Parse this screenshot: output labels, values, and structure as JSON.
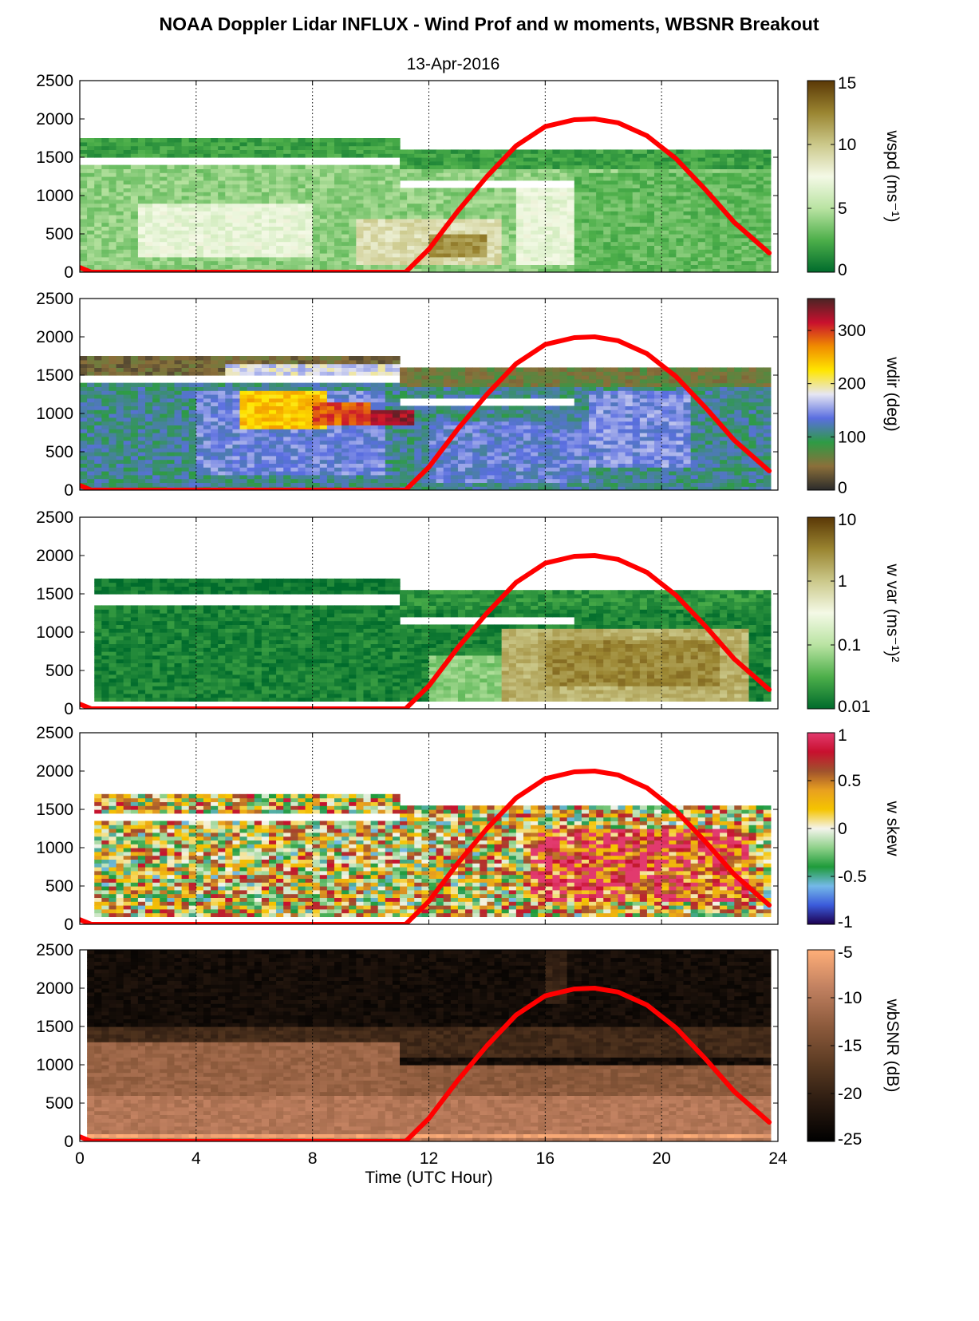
{
  "figure": {
    "title": "NOAA Doppler Lidar INFLUX - Wind Prof and w moments, WBSNR Breakout",
    "subtitle": "13-Apr-2016"
  },
  "chart_data": [
    {
      "type": "heatmap",
      "name": "wspd",
      "colorbar_label": "wspd (ms⁻¹)",
      "colorbar_ticks": [
        "0",
        "5",
        "10",
        "15"
      ],
      "colorbar_range": [
        0,
        15
      ],
      "colors": [
        "#006b2c",
        "#4daf4a",
        "#b9e3a2",
        "#f4f9e6",
        "#cbc88a",
        "#9a8531",
        "#5a3806"
      ],
      "xlim": [
        0,
        24
      ],
      "ylim": [
        0,
        2500
      ],
      "x_ticks": [
        0,
        4,
        8,
        12,
        16,
        20,
        24
      ],
      "y_ticks": [
        "0",
        "500",
        "1000",
        "1500",
        "2000",
        "2500"
      ],
      "grid": "vertical dotted at x ticks",
      "layers": [
        {
          "x0": 0.1,
          "x1": 23.8,
          "y0": 0,
          "y1": 1400,
          "v": 4
        },
        {
          "x0": 0.1,
          "x1": 11.0,
          "y0": 1500,
          "y1": 1750,
          "v": 2
        },
        {
          "x0": 11.0,
          "x1": 23.8,
          "y0": 1350,
          "y1": 1600,
          "v": 2
        },
        {
          "x0": 2.0,
          "x1": 8.0,
          "y0": 200,
          "y1": 900,
          "v": 7
        },
        {
          "x0": 9.5,
          "x1": 14.5,
          "y0": 100,
          "y1": 700,
          "v": 9
        },
        {
          "x0": 12.0,
          "x1": 14.0,
          "y0": 200,
          "y1": 500,
          "v": 12
        },
        {
          "x0": 15.0,
          "x1": 17.0,
          "y0": 100,
          "y1": 1100,
          "v": 7
        },
        {
          "x0": 17.0,
          "x1": 23.8,
          "y0": 0,
          "y1": 1300,
          "v": 3
        }
      ],
      "gaps": [
        {
          "x0": 0.1,
          "x1": 11.0,
          "y0": 1380,
          "y1": 1480
        },
        {
          "x0": 11.0,
          "x1": 17.0,
          "y0": 1080,
          "y1": 1200
        }
      ],
      "sun_curve": {
        "x": [
          0,
          0.4,
          11.2,
          12,
          13,
          14,
          15,
          16,
          17,
          17.7,
          18.5,
          19.5,
          20.5,
          21.5,
          22.5,
          23.7
        ],
        "y": [
          60,
          0,
          0,
          300,
          800,
          1250,
          1650,
          1900,
          1990,
          2000,
          1950,
          1780,
          1480,
          1080,
          650,
          250
        ]
      }
    },
    {
      "type": "heatmap",
      "name": "wdir",
      "colorbar_label": "wdir (deg)",
      "colorbar_ticks": [
        "0",
        "100",
        "200",
        "300"
      ],
      "colorbar_range": [
        0,
        360
      ],
      "colors": [
        "#2b2b2b",
        "#8b6f3a",
        "#2e9b45",
        "#5a6ee0",
        "#e6e6f3",
        "#ffe600",
        "#f08c00",
        "#c8102e",
        "#4a2424"
      ],
      "xlim": [
        0,
        24
      ],
      "ylim": [
        0,
        2500
      ],
      "x_ticks": [
        0,
        4,
        8,
        12,
        16,
        20,
        24
      ],
      "y_ticks": [
        "0",
        "500",
        "1000",
        "1500",
        "2000",
        "2500"
      ],
      "grid": "vertical dotted at x ticks",
      "layers": [
        {
          "x0": 0.1,
          "x1": 23.8,
          "y0": 0,
          "y1": 1380,
          "v": 110
        },
        {
          "x0": 0.1,
          "x1": 11.0,
          "y0": 1500,
          "y1": 1750,
          "v": 40
        },
        {
          "x0": 5.0,
          "x1": 11.0,
          "y0": 1500,
          "y1": 1650,
          "v": 175
        },
        {
          "x0": 11.0,
          "x1": 23.8,
          "y0": 1350,
          "y1": 1600,
          "v": 60
        },
        {
          "x0": 4.0,
          "x1": 10.5,
          "y0": 200,
          "y1": 1300,
          "v": 140
        },
        {
          "x0": 5.5,
          "x1": 8.5,
          "y0": 800,
          "y1": 1300,
          "v": 240
        },
        {
          "x0": 8.0,
          "x1": 10.0,
          "y0": 850,
          "y1": 1150,
          "v": 290
        },
        {
          "x0": 10.0,
          "x1": 11.5,
          "y0": 850,
          "y1": 1050,
          "v": 330
        },
        {
          "x0": 12.0,
          "x1": 17.5,
          "y0": 100,
          "y1": 900,
          "v": 135
        },
        {
          "x0": 17.5,
          "x1": 21.0,
          "y0": 300,
          "y1": 1300,
          "v": 145
        }
      ],
      "gaps": [
        {
          "x0": 0.1,
          "x1": 11.0,
          "y0": 1380,
          "y1": 1480
        },
        {
          "x0": 11.0,
          "x1": 17.0,
          "y0": 1080,
          "y1": 1200
        }
      ],
      "sun_curve": {
        "x": [
          0,
          0.4,
          11.2,
          12,
          13,
          14,
          15,
          16,
          17,
          17.7,
          18.5,
          19.5,
          20.5,
          21.5,
          22.5,
          23.7
        ],
        "y": [
          60,
          0,
          0,
          300,
          800,
          1250,
          1650,
          1900,
          1990,
          2000,
          1950,
          1780,
          1480,
          1080,
          650,
          250
        ]
      }
    },
    {
      "type": "heatmap",
      "name": "w var",
      "colorbar_label": "w var (ms⁻¹)²",
      "colorbar_ticks": [
        "0.01",
        "0.1",
        "1",
        "10"
      ],
      "colorbar_scale": "log",
      "colorbar_range": [
        0.01,
        10
      ],
      "colors": [
        "#006b2c",
        "#4daf4a",
        "#b9e3a2",
        "#f4f9e6",
        "#cbc88a",
        "#9a8531",
        "#5a3806"
      ],
      "xlim": [
        0,
        24
      ],
      "ylim": [
        0,
        2500
      ],
      "x_ticks": [
        0,
        4,
        8,
        12,
        16,
        20,
        24
      ],
      "y_ticks": [
        "0",
        "500",
        "1000",
        "1500",
        "2000",
        "2500"
      ],
      "grid": "vertical dotted at x ticks",
      "layers": [
        {
          "x0": 0.4,
          "x1": 23.8,
          "y0": 100,
          "y1": 1350,
          "v": 0.015
        },
        {
          "x0": 0.4,
          "x1": 11.0,
          "y0": 1500,
          "y1": 1700,
          "v": 0.012
        },
        {
          "x0": 11.0,
          "x1": 23.8,
          "y0": 1300,
          "y1": 1550,
          "v": 0.02
        },
        {
          "x0": 12.0,
          "x1": 15.0,
          "y0": 100,
          "y1": 700,
          "v": 0.06
        },
        {
          "x0": 14.5,
          "x1": 23.0,
          "y0": 100,
          "y1": 1050,
          "v": 1.5
        },
        {
          "x0": 16.0,
          "x1": 22.0,
          "y0": 300,
          "y1": 900,
          "v": 3.0
        }
      ],
      "gaps": [
        {
          "x0": 0.4,
          "x1": 11.0,
          "y0": 1360,
          "y1": 1480
        },
        {
          "x0": 11.0,
          "x1": 17.0,
          "y0": 1080,
          "y1": 1200
        }
      ],
      "sun_curve": {
        "x": [
          0,
          0.4,
          11.2,
          12,
          13,
          14,
          15,
          16,
          17,
          17.7,
          18.5,
          19.5,
          20.5,
          21.5,
          22.5,
          23.7
        ],
        "y": [
          60,
          0,
          0,
          300,
          800,
          1250,
          1650,
          1900,
          1990,
          2000,
          1950,
          1780,
          1480,
          1080,
          650,
          250
        ]
      }
    },
    {
      "type": "heatmap",
      "name": "w skew",
      "colorbar_label": "w skew",
      "colorbar_ticks": [
        "-1",
        "-0.5",
        "0",
        "0.5",
        "1"
      ],
      "colorbar_range": [
        -1,
        1
      ],
      "colors": [
        "#1c0050",
        "#3b5bdb",
        "#74b9e8",
        "#1f9b3a",
        "#8fd18a",
        "#f4f4ec",
        "#f5c400",
        "#e8a020",
        "#a0522d",
        "#c8102e",
        "#e23a6e"
      ],
      "xlim": [
        0,
        24
      ],
      "ylim": [
        0,
        2500
      ],
      "x_ticks": [
        0,
        4,
        8,
        12,
        16,
        20,
        24
      ],
      "y_ticks": [
        "0",
        "500",
        "1000",
        "1500",
        "2000",
        "2500"
      ],
      "grid": "vertical dotted at x ticks",
      "layers": [
        {
          "x0": 0.4,
          "x1": 23.8,
          "y0": 100,
          "y1": 1350,
          "v": 0.1
        },
        {
          "x0": 0.4,
          "x1": 11.0,
          "y0": 1450,
          "y1": 1700,
          "v": 0.15
        },
        {
          "x0": 11.0,
          "x1": 23.8,
          "y0": 1300,
          "y1": 1550,
          "v": 0.1
        },
        {
          "x0": 15.5,
          "x1": 23.0,
          "y0": 300,
          "y1": 1250,
          "v": 0.75
        }
      ],
      "gaps": [
        {
          "x0": 0.4,
          "x1": 11.0,
          "y0": 1360,
          "y1": 1440
        }
      ],
      "sun_curve": {
        "x": [
          0,
          0.4,
          11.2,
          12,
          13,
          14,
          15,
          16,
          17,
          17.7,
          18.5,
          19.5,
          20.5,
          21.5,
          22.5,
          23.7
        ],
        "y": [
          60,
          0,
          0,
          300,
          800,
          1250,
          1650,
          1900,
          1990,
          2000,
          1950,
          1780,
          1480,
          1080,
          650,
          250
        ]
      }
    },
    {
      "type": "heatmap",
      "name": "wbSNR",
      "colorbar_label": "wbSNR (dB)",
      "colorbar_ticks": [
        "-25",
        "-20",
        "-15",
        "-10",
        "-5"
      ],
      "colorbar_range": [
        -25,
        -5
      ],
      "colors": [
        "#000000",
        "#2a1a10",
        "#5a3a22",
        "#8c5a3c",
        "#c08060",
        "#ffae78"
      ],
      "xlim": [
        0,
        24
      ],
      "ylim": [
        0,
        2500
      ],
      "x_ticks": [
        0,
        4,
        8,
        12,
        16,
        20,
        24
      ],
      "y_ticks": [
        "0",
        "500",
        "1000",
        "1500",
        "2000",
        "2500"
      ],
      "x_tick_labels": [
        "0",
        "4",
        "8",
        "12",
        "16",
        "20",
        "24"
      ],
      "xlabel": "Time (UTC Hour)",
      "grid": "vertical dotted at x ticks",
      "layers": [
        {
          "x0": 0.3,
          "x1": 23.8,
          "y0": 0,
          "y1": 2500,
          "v": -23
        },
        {
          "x0": 0.3,
          "x1": 23.8,
          "y0": 1100,
          "y1": 1500,
          "v": -19
        },
        {
          "x0": 0.3,
          "x1": 11.0,
          "y0": 0,
          "y1": 1300,
          "v": -12
        },
        {
          "x0": 11.0,
          "x1": 23.8,
          "y0": 0,
          "y1": 1000,
          "v": -13
        },
        {
          "x0": 0.3,
          "x1": 23.8,
          "y0": 0,
          "y1": 600,
          "v": -10
        },
        {
          "x0": 16.0,
          "x1": 16.8,
          "y0": 1800,
          "y1": 2500,
          "v": -20
        },
        {
          "x0": 0.3,
          "x1": 23.8,
          "y0": 40,
          "y1": 120,
          "v": -6
        }
      ],
      "gaps": [],
      "sun_curve": {
        "x": [
          0,
          0.4,
          11.2,
          12,
          13,
          14,
          15,
          16,
          17,
          17.7,
          18.5,
          19.5,
          20.5,
          21.5,
          22.5,
          23.7
        ],
        "y": [
          60,
          0,
          0,
          300,
          800,
          1250,
          1650,
          1900,
          1990,
          2000,
          1950,
          1780,
          1480,
          1080,
          650,
          250
        ]
      }
    }
  ]
}
